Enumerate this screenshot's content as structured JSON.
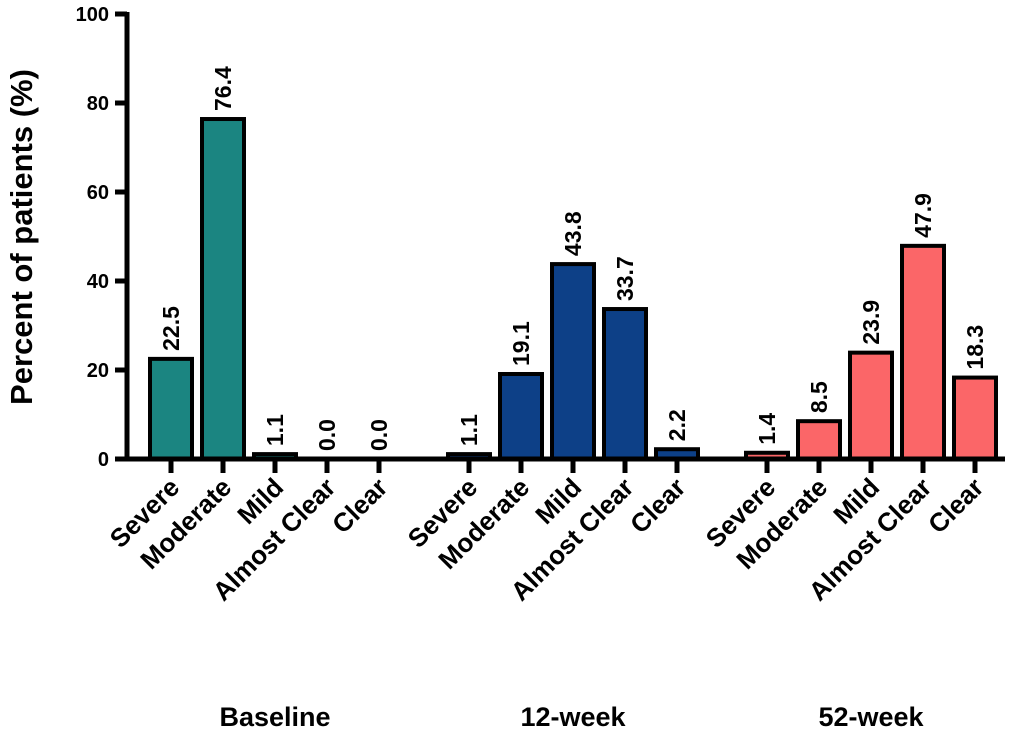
{
  "chart_data": {
    "type": "bar",
    "ylabel": "Percent of patients (%)",
    "ylim": [
      0,
      100
    ],
    "yticks": [
      0,
      20,
      40,
      60,
      80,
      100
    ],
    "grid": false,
    "groups": [
      {
        "name": "Baseline",
        "color": "#1b8581",
        "categories": [
          "Severe",
          "Moderate",
          "Mild",
          "Almost Clear",
          "Clear"
        ],
        "values": [
          22.5,
          76.4,
          1.1,
          0.0,
          0.0
        ],
        "value_labels": [
          "22.5",
          "76.4",
          "1.1",
          "0.0",
          "0.0"
        ]
      },
      {
        "name": "12-week",
        "color": "#0d4087",
        "categories": [
          "Severe",
          "Moderate",
          "Mild",
          "Almost Clear",
          "Clear"
        ],
        "values": [
          1.1,
          19.1,
          43.8,
          33.7,
          2.2
        ],
        "value_labels": [
          "1.1",
          "19.1",
          "43.8",
          "33.7",
          "2.2"
        ]
      },
      {
        "name": "52-week",
        "color": "#fb6668",
        "categories": [
          "Severe",
          "Moderate",
          "Mild",
          "Almost Clear",
          "Clear"
        ],
        "values": [
          1.4,
          8.5,
          23.9,
          47.9,
          18.3
        ],
        "value_labels": [
          "1.4",
          "8.5",
          "23.9",
          "47.9",
          "18.3"
        ]
      }
    ]
  }
}
